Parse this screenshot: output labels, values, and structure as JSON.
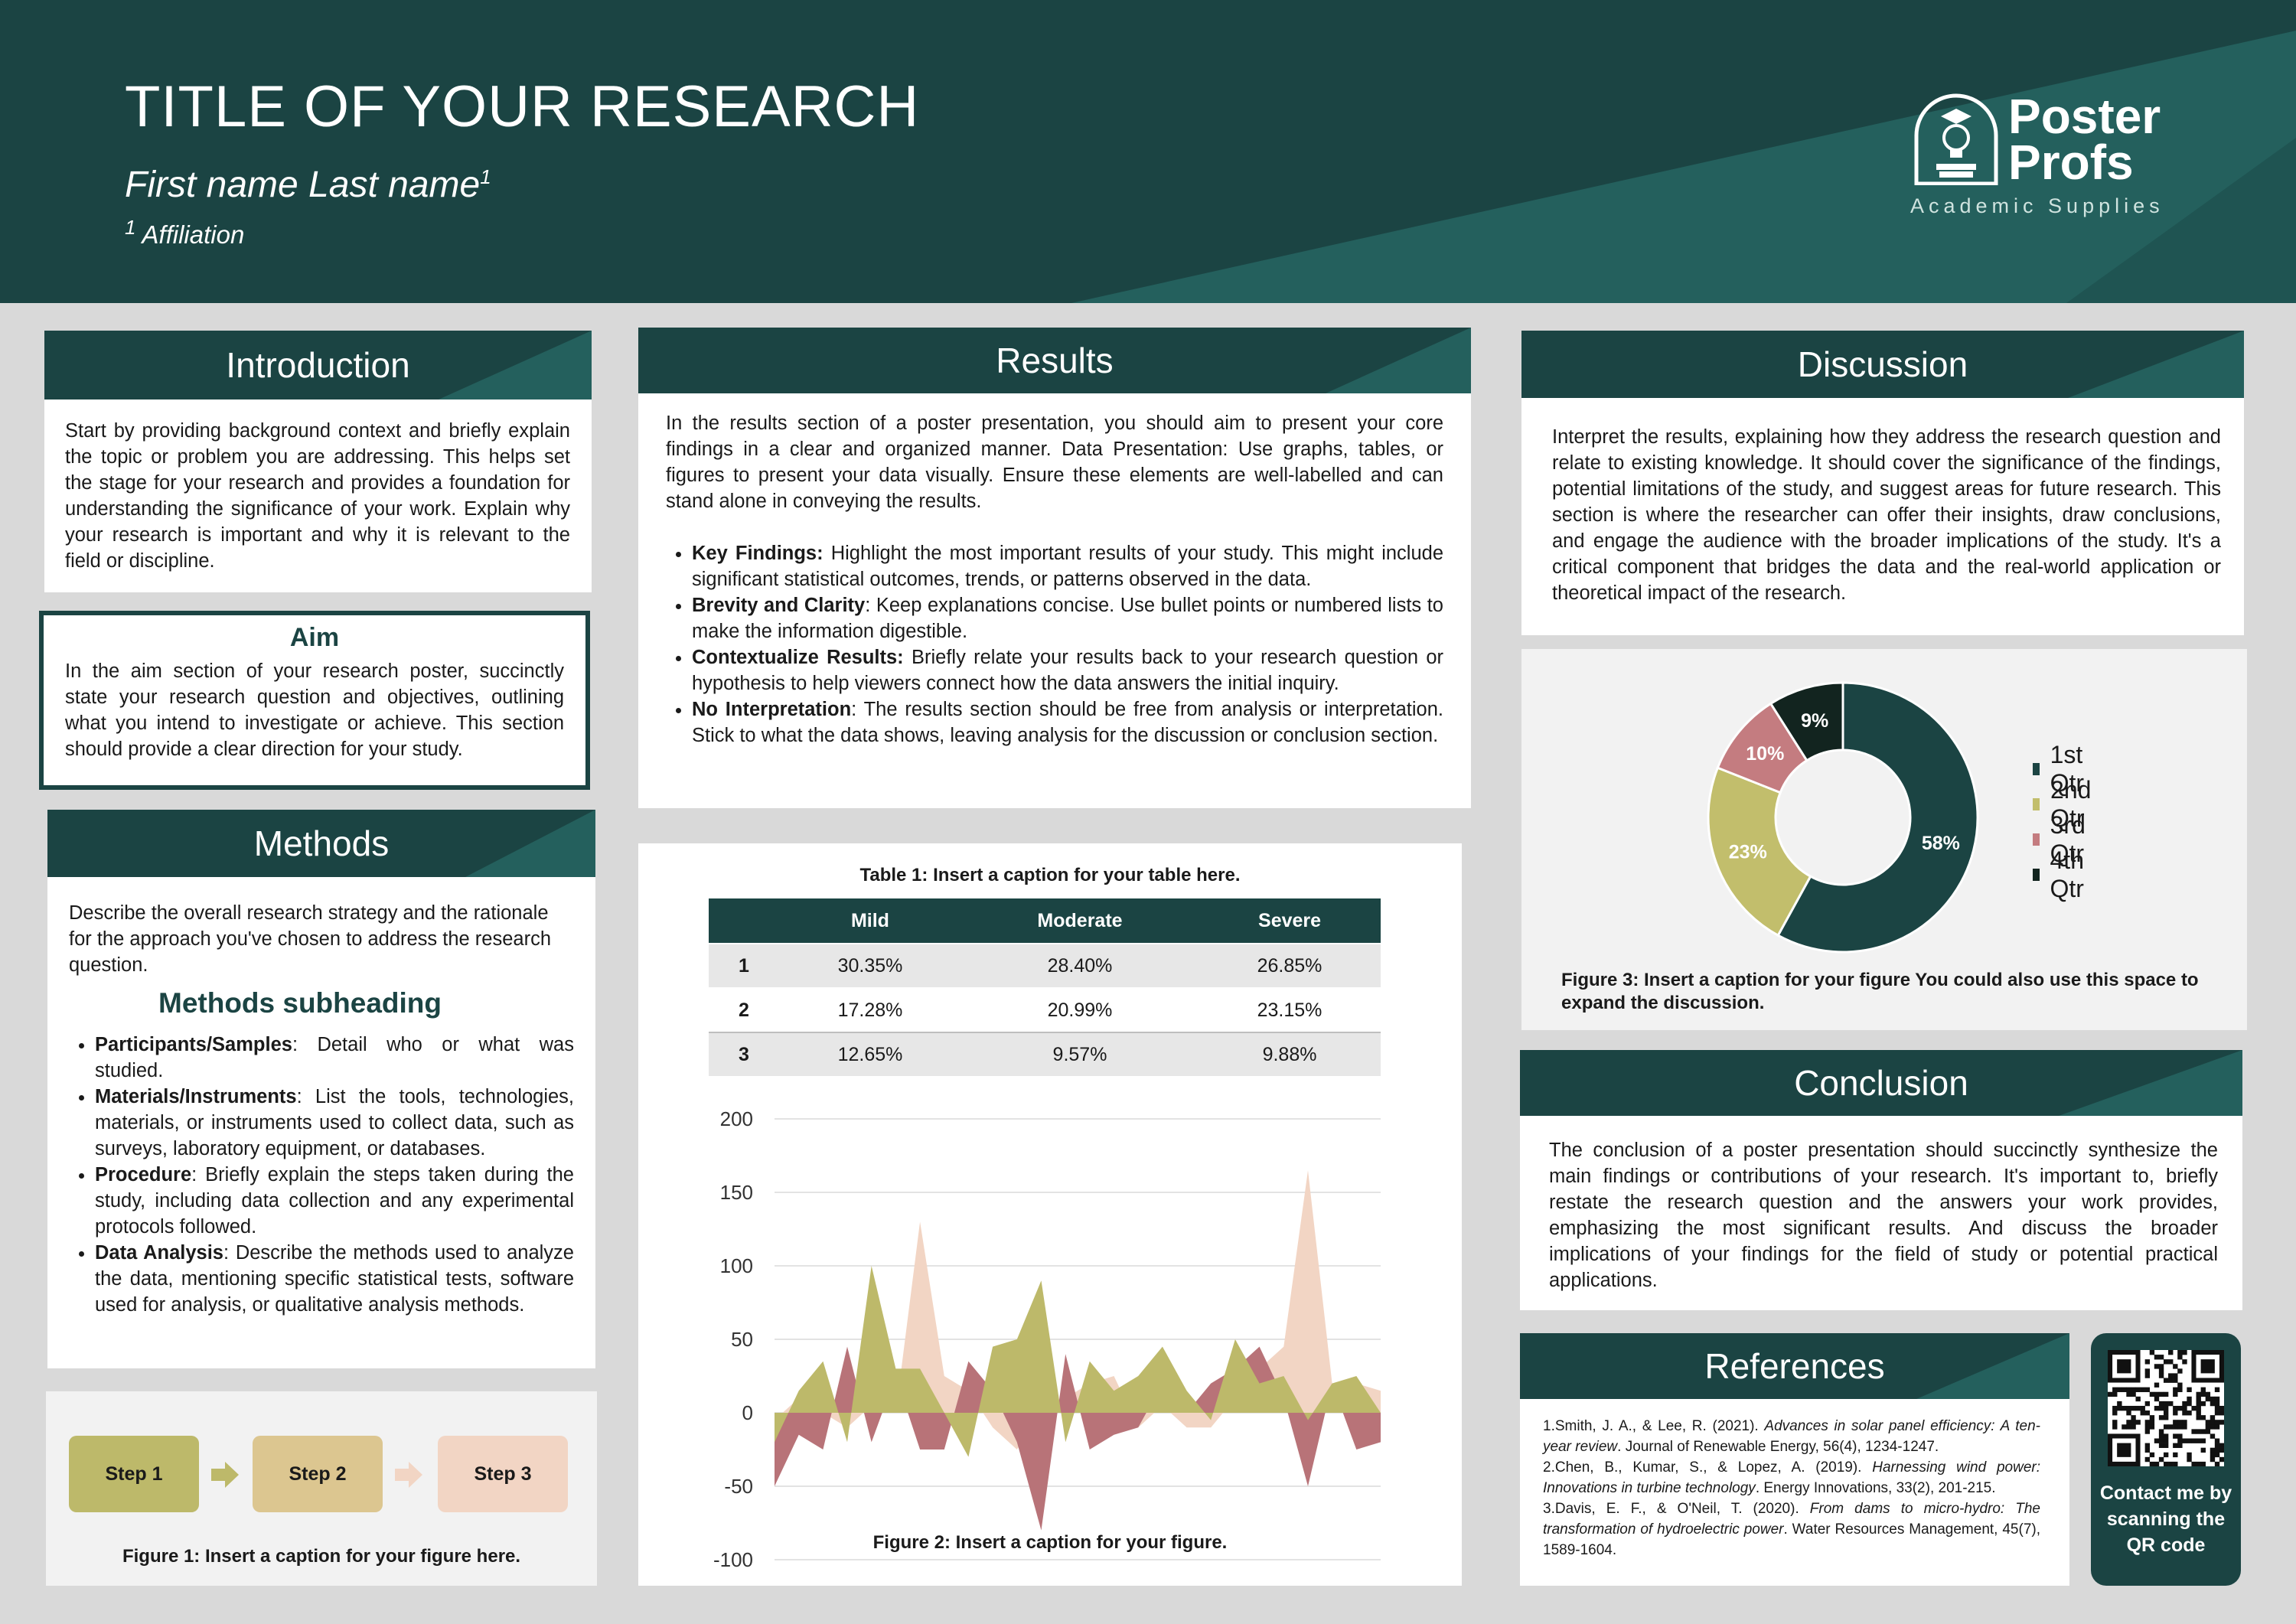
{
  "header": {
    "title": "TITLE OF YOUR RESEARCH",
    "author": "First name Last name",
    "author_sup": "1",
    "affiliation_sup": "1",
    "affiliation": "Affiliation",
    "logo_line1": "Poster",
    "logo_line2": "Profs",
    "logo_sub": "Academic Supplies",
    "colors": {
      "primary": "#1b4443",
      "accent": "#24605d"
    }
  },
  "introduction": {
    "heading": "Introduction",
    "text": "Start by providing background context and briefly explain the topic or problem you are addressing. This helps set the stage for your research and provides a foundation for understanding the significance of your work. Explain why your research is important and why it is relevant to the field or discipline."
  },
  "aim": {
    "heading": "Aim",
    "text": "In the aim section of your research poster, succinctly state your research question and objectives, outlining what you intend to investigate or achieve. This section should provide a clear direction for your study."
  },
  "methods": {
    "heading": "Methods",
    "text": "Describe the overall research strategy and the rationale for the approach you've chosen to address the research question.",
    "subheading": "Methods subheading",
    "bullets": [
      {
        "term": "Participants/Samples",
        "text": ": Detail who or what was studied."
      },
      {
        "term": "Materials/Instruments",
        "text": ": List the tools, technologies, materials, or instruments used to collect data, such as surveys, laboratory equipment, or databases."
      },
      {
        "term": "Procedure",
        "text": ": Briefly explain the steps taken during the study, including data collection and any experimental protocols followed."
      },
      {
        "term": "Data Analysis",
        "text": ": Describe the methods used to analyze the data, mentioning specific statistical tests, software used for analysis, or qualitative analysis methods."
      }
    ],
    "steps": [
      "Step 1",
      "Step 2",
      "Step 3"
    ],
    "figure_caption": "Figure 1: Insert a caption for your figure here."
  },
  "results": {
    "heading": "Results",
    "text": "In the results section of a poster presentation, you should aim to present your core findings in a clear and organized manner. Data Presentation: Use graphs, tables, or figures to present your data visually. Ensure these elements are well-labelled and can stand alone in conveying the results.",
    "bullets": [
      {
        "term": "Key Findings:",
        "text": " Highlight the most important results of your study. This might include significant statistical outcomes, trends, or patterns observed in the data."
      },
      {
        "term": "Brevity and Clarity",
        "text": ": Keep explanations concise. Use bullet points or numbered lists to make the information digestible."
      },
      {
        "term": "Contextualize Results:",
        "text": " Briefly relate your results back to your research question or hypothesis to help viewers connect how the data answers the initial inquiry."
      },
      {
        "term": "No Interpretation",
        "text": ": The results section should be free from analysis or interpretation. Stick to what the data shows, leaving analysis for the discussion or conclusion section."
      }
    ],
    "table_caption": "Table 1: Insert a caption for your table here.",
    "table": {
      "headers": [
        "",
        "Mild",
        "Moderate",
        "Severe"
      ],
      "rows": [
        [
          "1",
          "30.35%",
          "28.40%",
          "26.85%"
        ],
        [
          "2",
          "17.28%",
          "20.99%",
          "23.15%"
        ],
        [
          "3",
          "12.65%",
          "9.57%",
          "9.88%"
        ]
      ]
    },
    "figure_caption": "Figure 2: Insert a caption for your figure."
  },
  "discussion": {
    "heading": "Discussion",
    "text": "Interpret the results, explaining how they address the research question and relate to existing knowledge. It should cover the significance of the findings, potential limitations of the study, and suggest areas for future research. This section is where the researcher can offer their insights, draw conclusions, and engage the audience with the broader implications of the study. It's a critical component that bridges the data and the real-world application or theoretical impact of the research.",
    "figure_caption": "Figure 3: Insert a caption for your figure You could also use this space to expand the discussion."
  },
  "conclusion": {
    "heading": "Conclusion",
    "text": "The conclusion of a poster presentation should succinctly synthesize the main findings or contributions of your research. It's important to, briefly restate the research question and the answers your work provides, emphasizing the most significant results. And discuss the broader implications of your findings for the field of study or potential practical applications."
  },
  "references": {
    "heading": "References",
    "items": [
      {
        "pre": "1.Smith, J. A., & Lee, R. (2021). ",
        "title": "Advances in solar panel efficiency: A ten-year review",
        "post": ". Journal of Renewable Energy, 56(4), 1234-1247."
      },
      {
        "pre": "2.Chen, B., Kumar, S., & Lopez, A. (2019). ",
        "title": "Harnessing wind power: Innovations in turbine technology",
        "post": ". Energy Innovations, 33(2), 201-215."
      },
      {
        "pre": "3.Davis, E. F., & O'Neil, T. (2020). ",
        "title": "From dams to micro-hydro: The transformation of hydroelectric power",
        "post": ". Water Resources Management, 45(7), 1589-1604."
      }
    ]
  },
  "qr": {
    "label": "Contact me by scanning the QR code"
  },
  "chart_data": [
    {
      "type": "area",
      "yticks": [
        "200",
        "150",
        "100",
        "50",
        "0",
        "-50",
        "-100"
      ],
      "ylim": [
        -100,
        200
      ],
      "series": [
        {
          "color": "#f2d5c4",
          "values": [
            -5,
            10,
            0,
            -10,
            5,
            0,
            130,
            25,
            15,
            -10,
            -25,
            0,
            10,
            20,
            25,
            -10,
            5,
            -10,
            -10,
            10,
            30,
            45,
            165,
            20,
            20,
            15
          ]
        },
        {
          "color": "#b87378",
          "values": [
            -50,
            -15,
            -25,
            45,
            -20,
            25,
            -25,
            -25,
            35,
            15,
            -20,
            -80,
            40,
            -25,
            -15,
            -10,
            20,
            0,
            20,
            30,
            45,
            10,
            -50,
            20,
            -25,
            -20
          ]
        },
        {
          "color": "#bdb96a",
          "values": [
            -20,
            15,
            35,
            -20,
            100,
            30,
            30,
            0,
            -30,
            45,
            50,
            90,
            -20,
            35,
            15,
            25,
            45,
            15,
            -5,
            50,
            20,
            25,
            -5,
            20,
            25,
            0
          ]
        }
      ]
    },
    {
      "type": "pie",
      "labels": [
        "1st Qtr",
        "2nd Qtr",
        "3rd Qtr",
        "4th Qtr"
      ],
      "values": [
        58,
        23,
        10,
        9
      ],
      "value_labels": [
        "58%",
        "23%",
        "10%",
        "9%"
      ],
      "colors": [
        "#1b4443",
        "#c2be6c",
        "#c47c80",
        "#12241f"
      ],
      "legend": "right"
    }
  ]
}
